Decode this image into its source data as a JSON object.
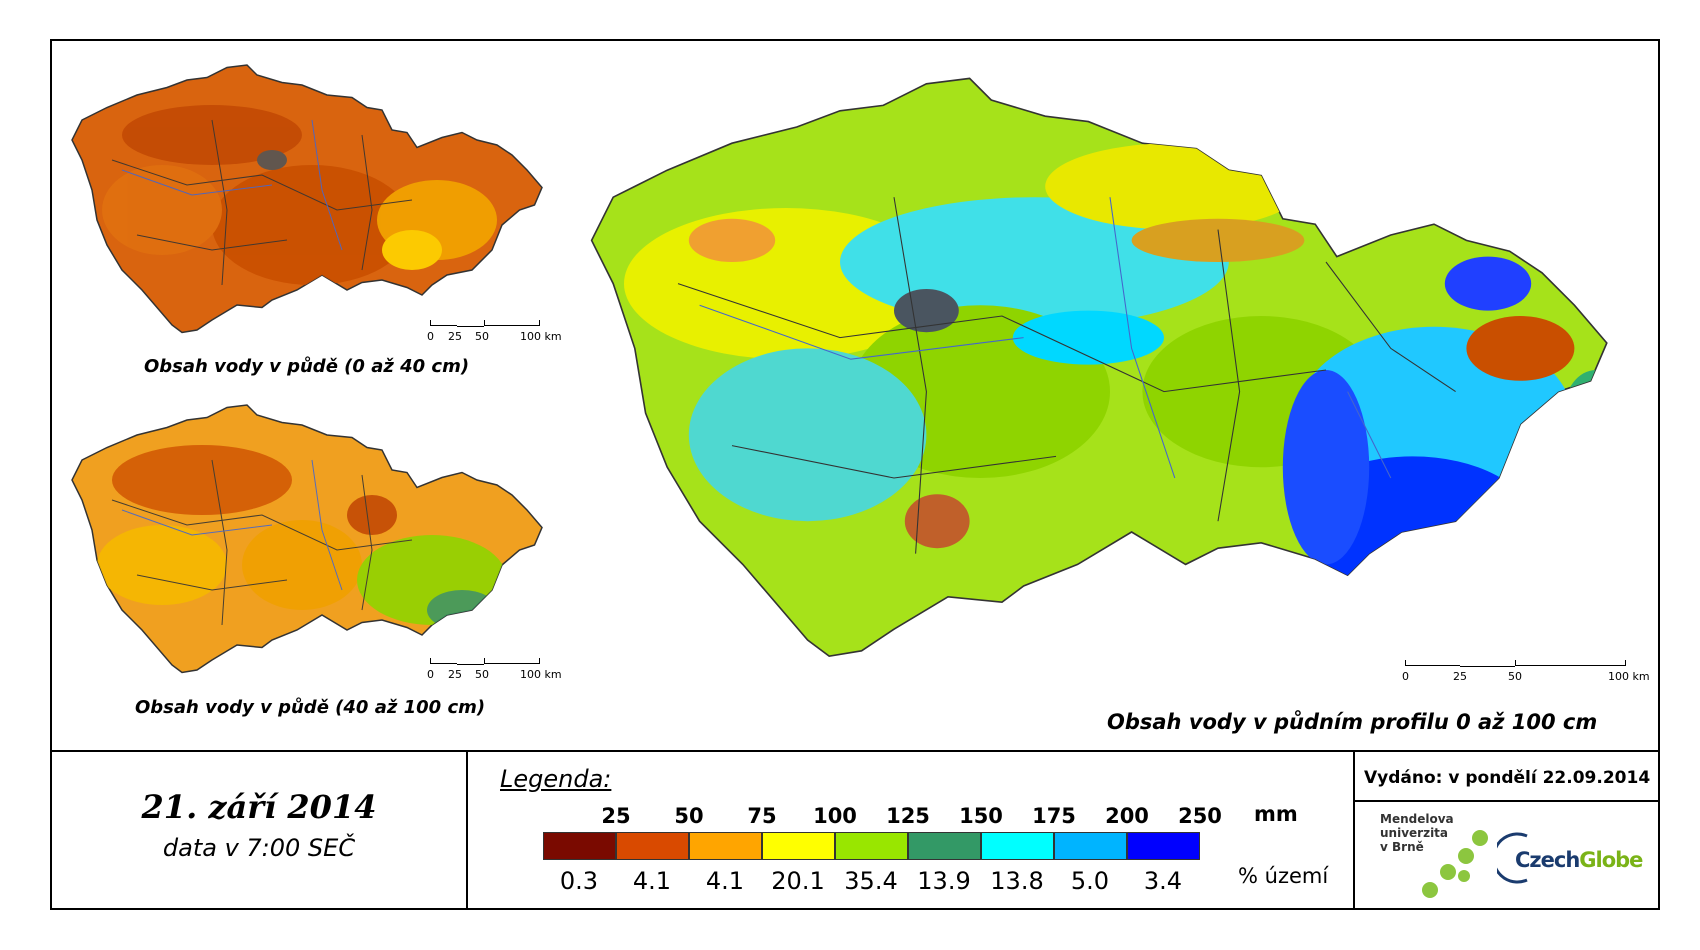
{
  "maps": {
    "top_left": {
      "caption": "Obsah vody v půdě (0 až 40 cm)",
      "scale_labels": [
        "0",
        "25",
        "50",
        "100 km"
      ]
    },
    "bottom_left": {
      "caption": "Obsah vody v půdě (40 až 100 cm)",
      "scale_labels": [
        "0",
        "25",
        "50",
        "100 km"
      ]
    },
    "main": {
      "caption": "Obsah vody v půdním profilu 0 až 100 cm",
      "scale_labels": [
        "0",
        "25",
        "50",
        "100 km"
      ]
    }
  },
  "date": {
    "main": "21. září 2014",
    "sub": "data v 7:00 SEČ"
  },
  "legend": {
    "title": "Legenda:",
    "unit_top": "mm",
    "unit_bottom": "% území",
    "thresholds": [
      "25",
      "50",
      "75",
      "100",
      "125",
      "150",
      "175",
      "200",
      "250"
    ],
    "classes": [
      {
        "color": "#7a0a00",
        "percent": "0.3"
      },
      {
        "color": "#d94a00",
        "percent": "4.1"
      },
      {
        "color": "#ffa500",
        "percent": "4.1"
      },
      {
        "color": "#ffff00",
        "percent": "20.1"
      },
      {
        "color": "#99e600",
        "percent": "35.4"
      },
      {
        "color": "#339966",
        "percent": "13.9"
      },
      {
        "color": "#00ffff",
        "percent": "13.8"
      },
      {
        "color": "#00b4ff",
        "percent": "5.0"
      },
      {
        "color": "#0000ff",
        "percent": "3.4"
      }
    ]
  },
  "issued": "Vydáno: v pondělí 22.09.2014",
  "logos": {
    "mendel_lines": [
      "Mendelova",
      "univerzita",
      "v Brně"
    ],
    "czechglobe_a": "Czech",
    "czechglobe_b": "Globe"
  }
}
